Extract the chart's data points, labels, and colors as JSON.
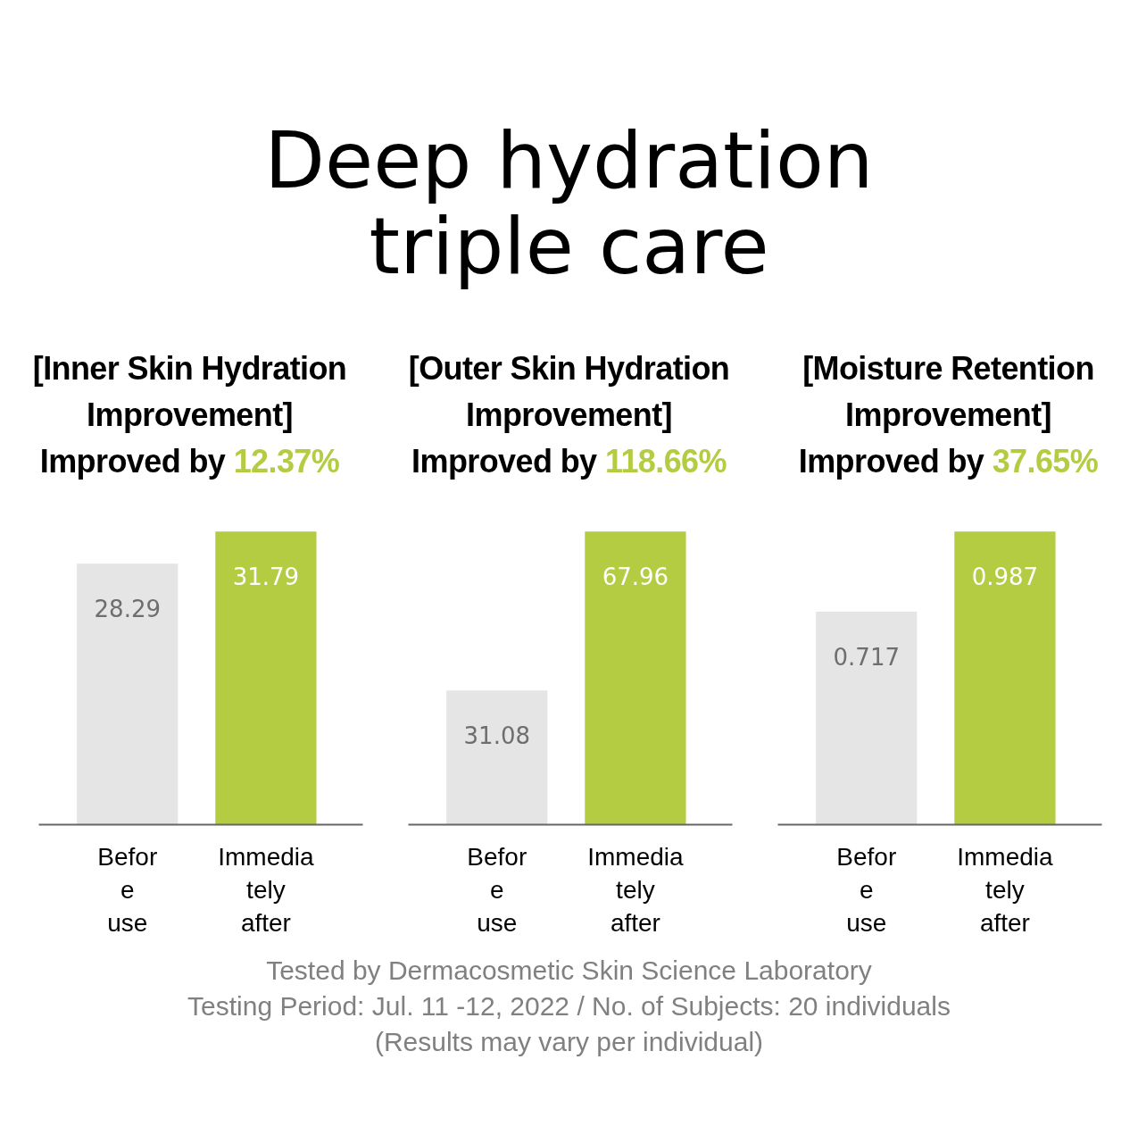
{
  "chart_data": [
    {
      "type": "other",
      "title": "Deep hydration\ntriple care"
    },
    {
      "type": "bar",
      "title": "[Inner Skin Hydration\nImprovement]",
      "subtitle": "Improved by 12.37%",
      "categories": [
        "Befor\ne\nuse",
        "Immedia\ntely\nafter"
      ],
      "values": [
        28.29,
        31.79
      ],
      "colors": [
        "#e5e5e5",
        "#b3cc41"
      ],
      "data_labels": true
    },
    {
      "type": "bar",
      "title": "[Outer Skin Hydration\nImprovement]",
      "subtitle": "Improved by 118.66%",
      "categories": [
        "Befor\ne\nuse",
        "Immedia\ntely\nafter"
      ],
      "values": [
        31.08,
        67.96
      ],
      "colors": [
        "#e5e5e5",
        "#b3cc41"
      ],
      "data_labels": true
    },
    {
      "type": "bar",
      "title": "[Moisture Retention\nImprovement]",
      "subtitle": "Improved by 37.65%",
      "categories": [
        "Befor\ne\nuse",
        "Immedia\ntely\nafter"
      ],
      "values": [
        0.717,
        0.987
      ],
      "colors": [
        "#e5e5e5",
        "#b3cc41"
      ],
      "data_labels": true
    },
    {
      "type": "other",
      "annotations": [
        "Tested by Dermacosmetic Skin Science Laboratory",
        "Testing Period: Jul. 11 -12, 2022 / No. of Subjects: 20 individuals",
        "(Results may vary per individual)"
      ]
    }
  ]
}
